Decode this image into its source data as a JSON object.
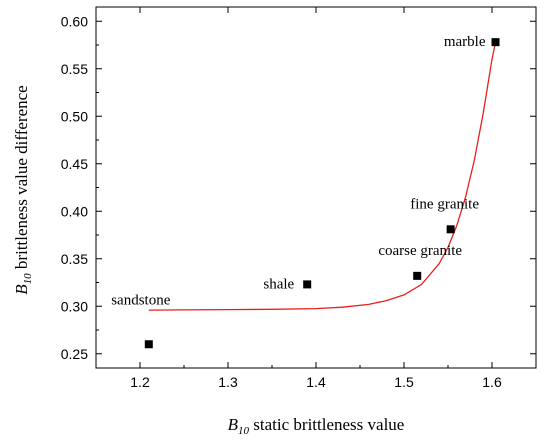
{
  "chart_data": {
    "type": "scatter",
    "xlabel": {
      "main": "B",
      "sub": "10",
      "rest": " static brittleness value"
    },
    "ylabel": {
      "main": "B",
      "sub": "10",
      "rest": " brittleness value difference"
    },
    "xlim": [
      1.15,
      1.65
    ],
    "ylim": [
      0.235,
      0.615
    ],
    "x_ticks": [
      1.2,
      1.3,
      1.4,
      1.5,
      1.6
    ],
    "y_ticks": [
      0.25,
      0.3,
      0.35,
      0.4,
      0.45,
      0.5,
      0.55,
      0.6
    ],
    "x_tick_labels": [
      "1.2",
      "1.3",
      "1.4",
      "1.5",
      "1.6"
    ],
    "y_tick_labels": [
      "0.25",
      "0.30",
      "0.35",
      "0.40",
      "0.45",
      "0.50",
      "0.55",
      "0.60"
    ],
    "points": [
      {
        "label": "sandstone",
        "x": 1.21,
        "y": 0.26
      },
      {
        "label": "shale",
        "x": 1.39,
        "y": 0.323
      },
      {
        "label": "coarse granite",
        "x": 1.515,
        "y": 0.332
      },
      {
        "label": "fine granite",
        "x": 1.553,
        "y": 0.381
      },
      {
        "label": "marble",
        "x": 1.604,
        "y": 0.578
      }
    ],
    "fit_curve": {
      "color": "#e8201c",
      "x": [
        1.21,
        1.25,
        1.3,
        1.35,
        1.4,
        1.43,
        1.46,
        1.48,
        1.5,
        1.52,
        1.54,
        1.55,
        1.56,
        1.57,
        1.58,
        1.59,
        1.6,
        1.604
      ],
      "y": [
        0.296,
        0.2962,
        0.2965,
        0.2968,
        0.2975,
        0.299,
        0.302,
        0.306,
        0.312,
        0.323,
        0.345,
        0.362,
        0.385,
        0.415,
        0.454,
        0.503,
        0.56,
        0.578
      ]
    },
    "marker_color": "#000000",
    "grid": false
  }
}
